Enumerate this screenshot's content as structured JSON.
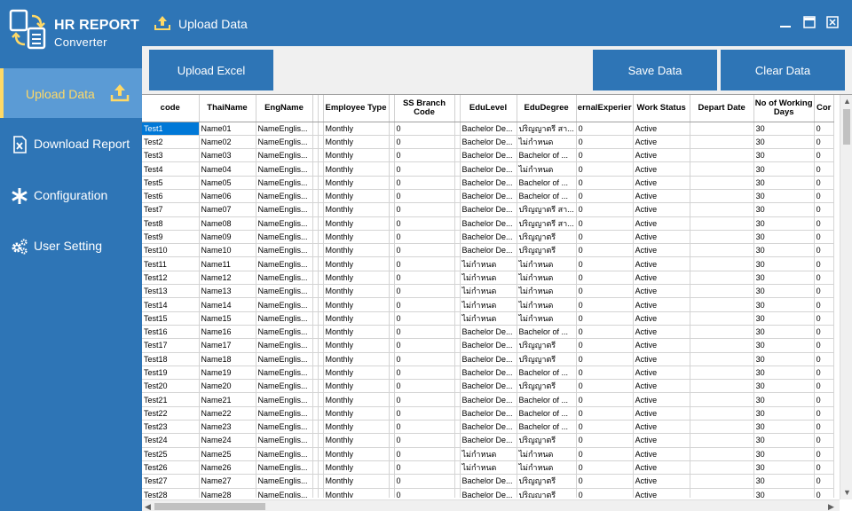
{
  "app": {
    "title_main": "HR REPORT",
    "title_sub": "Converter"
  },
  "header": {
    "title": "Upload Data"
  },
  "sidebar": {
    "items": [
      {
        "label": "Upload Data",
        "icon": "upload-icon"
      },
      {
        "label": "Download Report",
        "icon": "excel-file-icon"
      },
      {
        "label": "Configuration",
        "icon": "asterisk-icon"
      },
      {
        "label": "User Setting",
        "icon": "gears-icon"
      }
    ]
  },
  "toolbar": {
    "upload_label": "Upload Excel",
    "save_label": "Save Data",
    "clear_label": "Clear Data"
  },
  "colors": {
    "primary": "#2e75b6",
    "active_nav": "#5b9bd5",
    "accent": "#ffd966",
    "selection": "#0078d7"
  },
  "grid": {
    "columns": [
      "code",
      "ThaiName",
      "EngName",
      "",
      "",
      "Employee Type",
      "",
      "SS Branch Code",
      "",
      "EduLevel",
      "EduDegree",
      "ernalExperier",
      "Work Status",
      "Depart Date",
      "No of Working Days",
      "Cor"
    ],
    "rows": [
      [
        "Test1",
        "Name01",
        "NameEnglis...",
        "",
        "",
        "Monthly",
        "",
        "0",
        "",
        "Bachelor De...",
        "ปริญญาตรี สา...",
        "0",
        "Active",
        "",
        "30",
        "0"
      ],
      [
        "Test2",
        "Name02",
        "NameEnglis...",
        "",
        "",
        "Monthly",
        "",
        "0",
        "",
        "Bachelor De...",
        "ไม่กำหนด",
        "0",
        "Active",
        "",
        "30",
        "0"
      ],
      [
        "Test3",
        "Name03",
        "NameEnglis...",
        "",
        "",
        "Monthly",
        "",
        "0",
        "",
        "Bachelor De...",
        "Bachelor of ...",
        "0",
        "Active",
        "",
        "30",
        "0"
      ],
      [
        "Test4",
        "Name04",
        "NameEnglis...",
        "",
        "",
        "Monthly",
        "",
        "0",
        "",
        "Bachelor De...",
        "ไม่กำหนด",
        "0",
        "Active",
        "",
        "30",
        "0"
      ],
      [
        "Test5",
        "Name05",
        "NameEnglis...",
        "",
        "",
        "Monthly",
        "",
        "0",
        "",
        "Bachelor De...",
        "Bachelor of ...",
        "0",
        "Active",
        "",
        "30",
        "0"
      ],
      [
        "Test6",
        "Name06",
        "NameEnglis...",
        "",
        "",
        "Monthly",
        "",
        "0",
        "",
        "Bachelor De...",
        "Bachelor of ...",
        "0",
        "Active",
        "",
        "30",
        "0"
      ],
      [
        "Test7",
        "Name07",
        "NameEnglis...",
        "",
        "",
        "Monthly",
        "",
        "0",
        "",
        "Bachelor De...",
        "ปริญญาตรี สา...",
        "0",
        "Active",
        "",
        "30",
        "0"
      ],
      [
        "Test8",
        "Name08",
        "NameEnglis...",
        "",
        "",
        "Monthly",
        "",
        "0",
        "",
        "Bachelor De...",
        "ปริญญาตรี สา...",
        "0",
        "Active",
        "",
        "30",
        "0"
      ],
      [
        "Test9",
        "Name09",
        "NameEnglis...",
        "",
        "",
        "Monthly",
        "",
        "0",
        "",
        "Bachelor De...",
        "ปริญญาตรี",
        "0",
        "Active",
        "",
        "30",
        "0"
      ],
      [
        "Test10",
        "Name10",
        "NameEnglis...",
        "",
        "",
        "Monthly",
        "",
        "0",
        "",
        "Bachelor De...",
        "ปริญญาตรี",
        "0",
        "Active",
        "",
        "30",
        "0"
      ],
      [
        "Test11",
        "Name11",
        "NameEnglis...",
        "",
        "",
        "Monthly",
        "",
        "0",
        "",
        "ไม่กำหนด",
        "ไม่กำหนด",
        "0",
        "Active",
        "",
        "30",
        "0"
      ],
      [
        "Test12",
        "Name12",
        "NameEnglis...",
        "",
        "",
        "Monthly",
        "",
        "0",
        "",
        "ไม่กำหนด",
        "ไม่กำหนด",
        "0",
        "Active",
        "",
        "30",
        "0"
      ],
      [
        "Test13",
        "Name13",
        "NameEnglis...",
        "",
        "",
        "Monthly",
        "",
        "0",
        "",
        "ไม่กำหนด",
        "ไม่กำหนด",
        "0",
        "Active",
        "",
        "30",
        "0"
      ],
      [
        "Test14",
        "Name14",
        "NameEnglis...",
        "",
        "",
        "Monthly",
        "",
        "0",
        "",
        "ไม่กำหนด",
        "ไม่กำหนด",
        "0",
        "Active",
        "",
        "30",
        "0"
      ],
      [
        "Test15",
        "Name15",
        "NameEnglis...",
        "",
        "",
        "Monthly",
        "",
        "0",
        "",
        "ไม่กำหนด",
        "ไม่กำหนด",
        "0",
        "Active",
        "",
        "30",
        "0"
      ],
      [
        "Test16",
        "Name16",
        "NameEnglis...",
        "",
        "",
        "Monthly",
        "",
        "0",
        "",
        "Bachelor De...",
        "Bachelor of ...",
        "0",
        "Active",
        "",
        "30",
        "0"
      ],
      [
        "Test17",
        "Name17",
        "NameEnglis...",
        "",
        "",
        "Monthly",
        "",
        "0",
        "",
        "Bachelor De...",
        "ปริญญาตรี",
        "0",
        "Active",
        "",
        "30",
        "0"
      ],
      [
        "Test18",
        "Name18",
        "NameEnglis...",
        "",
        "",
        "Monthly",
        "",
        "0",
        "",
        "Bachelor De...",
        "ปริญญาตรี",
        "0",
        "Active",
        "",
        "30",
        "0"
      ],
      [
        "Test19",
        "Name19",
        "NameEnglis...",
        "",
        "",
        "Monthly",
        "",
        "0",
        "",
        "Bachelor De...",
        "Bachelor of ...",
        "0",
        "Active",
        "",
        "30",
        "0"
      ],
      [
        "Test20",
        "Name20",
        "NameEnglis...",
        "",
        "",
        "Monthly",
        "",
        "0",
        "",
        "Bachelor De...",
        "ปริญญาตรี",
        "0",
        "Active",
        "",
        "30",
        "0"
      ],
      [
        "Test21",
        "Name21",
        "NameEnglis...",
        "",
        "",
        "Monthly",
        "",
        "0",
        "",
        "Bachelor De...",
        "Bachelor of ...",
        "0",
        "Active",
        "",
        "30",
        "0"
      ],
      [
        "Test22",
        "Name22",
        "NameEnglis...",
        "",
        "",
        "Monthly",
        "",
        "0",
        "",
        "Bachelor De...",
        "Bachelor of ...",
        "0",
        "Active",
        "",
        "30",
        "0"
      ],
      [
        "Test23",
        "Name23",
        "NameEnglis...",
        "",
        "",
        "Monthly",
        "",
        "0",
        "",
        "Bachelor De...",
        "Bachelor of ...",
        "0",
        "Active",
        "",
        "30",
        "0"
      ],
      [
        "Test24",
        "Name24",
        "NameEnglis...",
        "",
        "",
        "Monthly",
        "",
        "0",
        "",
        "Bachelor De...",
        "ปริญญาตรี",
        "0",
        "Active",
        "",
        "30",
        "0"
      ],
      [
        "Test25",
        "Name25",
        "NameEnglis...",
        "",
        "",
        "Monthly",
        "",
        "0",
        "",
        "ไม่กำหนด",
        "ไม่กำหนด",
        "0",
        "Active",
        "",
        "30",
        "0"
      ],
      [
        "Test26",
        "Name26",
        "NameEnglis...",
        "",
        "",
        "Monthly",
        "",
        "0",
        "",
        "ไม่กำหนด",
        "ไม่กำหนด",
        "0",
        "Active",
        "",
        "30",
        "0"
      ],
      [
        "Test27",
        "Name27",
        "NameEnglis...",
        "",
        "",
        "Monthly",
        "",
        "0",
        "",
        "Bachelor De...",
        "ปริญญาตรี",
        "0",
        "Active",
        "",
        "30",
        "0"
      ],
      [
        "Test28",
        "Name28",
        "NameEnglis...",
        "",
        "",
        "Monthly",
        "",
        "0",
        "",
        "Bachelor De...",
        "ปริญญาตรี",
        "0",
        "Active",
        "",
        "30",
        "0"
      ]
    ]
  }
}
